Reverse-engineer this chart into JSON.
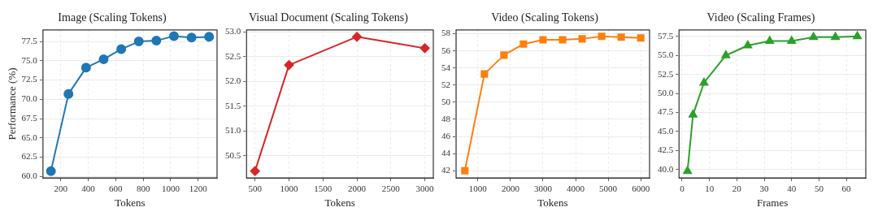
{
  "chart_data": [
    {
      "type": "line",
      "title": "Image (Scaling Tokens)",
      "xlabel": "Tokens",
      "ylabel": "Performance (%)",
      "marker": "circle",
      "grid": true,
      "x": [
        128,
        256,
        384,
        512,
        640,
        768,
        896,
        1024,
        1152,
        1280
      ],
      "series": [
        {
          "color": "#1f77b4",
          "values": [
            60.7,
            70.7,
            74.1,
            75.2,
            76.5,
            77.5,
            77.6,
            78.2,
            78.0,
            78.1
          ]
        }
      ],
      "xlim": [
        70,
        1338
      ],
      "xticks": [
        200,
        400,
        600,
        800,
        1000,
        1200
      ],
      "ylim": [
        59.8,
        79.0
      ],
      "yticks": [
        {
          "value": 60,
          "label": "60.0"
        },
        62.5,
        {
          "value": 65,
          "label": "65.0"
        },
        67.5,
        {
          "value": 70,
          "label": "70.0"
        },
        72.5,
        {
          "value": 75,
          "label": "75.0"
        },
        77.5
      ]
    },
    {
      "type": "line",
      "title": "Visual Document (Scaling Tokens)",
      "xlabel": "Tokens",
      "marker": "diamond",
      "grid": true,
      "x": [
        500,
        1000,
        2000,
        3000
      ],
      "series": [
        {
          "color": "#d62728",
          "values": [
            50.19,
            52.33,
            52.9,
            52.67
          ]
        }
      ],
      "xlim": [
        375,
        3125
      ],
      "xticks": [
        500,
        1000,
        1500,
        2000,
        2500,
        3000
      ],
      "ylim": [
        50.05,
        53.04
      ],
      "yticks": [
        50.5,
        {
          "value": 51,
          "label": "51.0"
        },
        51.5,
        {
          "value": 52,
          "label": "52.0"
        },
        52.5,
        {
          "value": 53,
          "label": "53.0"
        }
      ]
    },
    {
      "type": "line",
      "title": "Video (Scaling Tokens)",
      "xlabel": "Tokens",
      "marker": "square",
      "grid": true,
      "x": [
        600,
        1200,
        1800,
        2400,
        3000,
        3600,
        4200,
        4800,
        5400,
        6000
      ],
      "series": [
        {
          "color": "#ff7f0e",
          "values": [
            42.0,
            53.3,
            55.5,
            56.8,
            57.3,
            57.3,
            57.4,
            57.7,
            57.6,
            57.5
          ]
        }
      ],
      "xlim": [
        330,
        6270
      ],
      "xticks": [
        1000,
        2000,
        3000,
        4000,
        5000,
        6000
      ],
      "ylim": [
        41.15,
        58.45
      ],
      "yticks": [
        42,
        44,
        46,
        48,
        50,
        52,
        54,
        56,
        58
      ]
    },
    {
      "type": "line",
      "title": "Video (Scaling Frames)",
      "xlabel": "Frames",
      "marker": "triangle",
      "grid": true,
      "x": [
        2,
        4,
        8,
        16,
        24,
        32,
        40,
        48,
        56,
        64
      ],
      "series": [
        {
          "color": "#2ca02c",
          "values": [
            39.8,
            47.2,
            51.4,
            55.0,
            56.3,
            56.9,
            56.9,
            57.4,
            57.4,
            57.5
          ]
        }
      ],
      "xlim": [
        -1.1,
        67.1
      ],
      "xticks": [
        0,
        10,
        20,
        30,
        40,
        50,
        60
      ],
      "ylim": [
        38.9,
        58.35
      ],
      "yticks": [
        {
          "value": 40,
          "label": "40.0"
        },
        42.5,
        {
          "value": 45,
          "label": "45.0"
        },
        47.5,
        {
          "value": 50,
          "label": "50.0"
        },
        52.5,
        {
          "value": 55,
          "label": "55.0"
        },
        57.5
      ]
    }
  ]
}
